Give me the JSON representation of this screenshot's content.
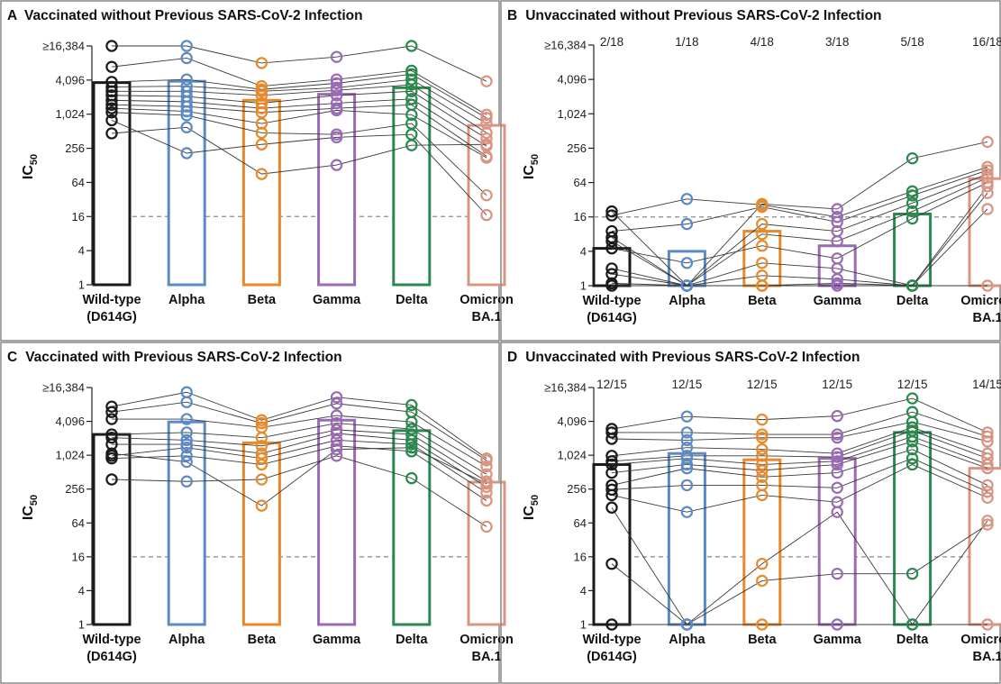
{
  "colors": {
    "Wild-type (D614G)": "#1a1a1a",
    "Alpha": "#5b8ac6",
    "Beta": "#e8892a",
    "Gamma": "#9a6bb4",
    "Delta": "#2a8a4d",
    "Omicron BA.1": "#d99582"
  },
  "chart_data": [
    {
      "panel": "A",
      "title": "Vaccinated without Previous SARS-CoV-2 Infection",
      "type": "bar",
      "ylabel": "IC50",
      "yscale": "log2",
      "ylim": [
        1,
        16384
      ],
      "yticks": [
        {
          "value": 1,
          "label": "1"
        },
        {
          "value": 4,
          "label": "4"
        },
        {
          "value": 16,
          "label": "16"
        },
        {
          "value": 64,
          "label": "64"
        },
        {
          "value": 256,
          "label": "256"
        },
        {
          "value": 1024,
          "label": "1,024"
        },
        {
          "value": 4096,
          "label": "4,096"
        },
        {
          "value": 16384,
          "label": "≥16,384"
        }
      ],
      "threshold": 16,
      "categories": [
        "Wild-type\n(D614G)",
        "Alpha",
        "Beta",
        "Gamma",
        "Delta",
        "Omicron\nBA.1"
      ],
      "ratios": [],
      "bar_values": [
        3700,
        3900,
        1800,
        2300,
        3000,
        650
      ],
      "subjects": [
        [
          16384,
          16384,
          8200,
          10500,
          16384,
          3900
        ],
        [
          7000,
          10000,
          3200,
          4200,
          6000,
          1000
        ],
        [
          3800,
          4200,
          2800,
          3600,
          5200,
          880
        ],
        [
          3100,
          3200,
          2600,
          3000,
          4200,
          700
        ],
        [
          2600,
          2600,
          2200,
          2700,
          3400,
          480
        ],
        [
          2200,
          2100,
          1600,
          2200,
          2600,
          380
        ],
        [
          1800,
          1700,
          1300,
          1600,
          1900,
          280
        ],
        [
          1500,
          1400,
          1100,
          1300,
          1500,
          185
        ],
        [
          1300,
          1150,
          700,
          1200,
          1000,
          175
        ],
        [
          1100,
          980,
          480,
          450,
          700,
          38
        ],
        [
          800,
          210,
          300,
          400,
          450,
          17
        ],
        [
          470,
          600,
          90,
          130,
          290,
          300
        ]
      ]
    },
    {
      "panel": "B",
      "title": "Unvaccinated without Previous SARS-CoV-2 Infection",
      "type": "bar",
      "ylabel": "IC50",
      "yscale": "log2",
      "ylim": [
        1,
        16384
      ],
      "yticks": [
        {
          "value": 1,
          "label": "1"
        },
        {
          "value": 4,
          "label": "4"
        },
        {
          "value": 16,
          "label": "16"
        },
        {
          "value": 64,
          "label": "64"
        },
        {
          "value": 256,
          "label": "256"
        },
        {
          "value": 1024,
          "label": "1,024"
        },
        {
          "value": 4096,
          "label": "4,096"
        },
        {
          "value": 16384,
          "label": "≥16,384"
        }
      ],
      "threshold": 16,
      "categories": [
        "Wild-type\n(D614G)",
        "Alpha",
        "Beta",
        "Gamma",
        "Delta",
        "Omicron\nBA.1"
      ],
      "ratios": [
        "2/18",
        "1/18",
        "4/18",
        "3/18",
        "5/18",
        "16/18"
      ],
      "bar_values": [
        4.5,
        4,
        9,
        5,
        18,
        75
      ],
      "subjects": [
        [
          20,
          1,
          27,
          22,
          170,
          330
        ],
        [
          17,
          33,
          26,
          16,
          45,
          120
        ],
        [
          9,
          12,
          24,
          13,
          38,
          105
        ],
        [
          7,
          1,
          12,
          9,
          28,
          90
        ],
        [
          6,
          1,
          8,
          6,
          20,
          78
        ],
        [
          4.5,
          2.5,
          5,
          3,
          15,
          64
        ],
        [
          2,
          1,
          2.5,
          2,
          1,
          55
        ],
        [
          1.6,
          1,
          1.5,
          1.3,
          1,
          42
        ],
        [
          1.1,
          1,
          1,
          1,
          1,
          22
        ],
        [
          1,
          1,
          1,
          1.1,
          1,
          1
        ]
      ]
    },
    {
      "panel": "C",
      "title": "Vaccinated with Previous SARS-CoV-2 Infection",
      "type": "bar",
      "ylabel": "IC50",
      "yscale": "log2",
      "ylim": [
        1,
        16384
      ],
      "yticks": [
        {
          "value": 1,
          "label": "1"
        },
        {
          "value": 4,
          "label": "4"
        },
        {
          "value": 16,
          "label": "16"
        },
        {
          "value": 64,
          "label": "64"
        },
        {
          "value": 256,
          "label": "256"
        },
        {
          "value": 1024,
          "label": "1,024"
        },
        {
          "value": 4096,
          "label": "4,096"
        },
        {
          "value": 16384,
          "label": "≥16,384"
        }
      ],
      "threshold": 16,
      "categories": [
        "Wild-type\n(D614G)",
        "Alpha",
        "Beta",
        "Gamma",
        "Delta",
        "Omicron\nBA.1"
      ],
      "ratios": [],
      "bar_values": [
        2400,
        4000,
        1700,
        4300,
        2800,
        340
      ],
      "subjects": [
        [
          7500,
          13500,
          4300,
          11000,
          8000,
          900
        ],
        [
          6000,
          9000,
          3800,
          8500,
          6000,
          830
        ],
        [
          4500,
          4500,
          3200,
          5200,
          4000,
          650
        ],
        [
          2400,
          2600,
          2100,
          3800,
          3000,
          470
        ],
        [
          2100,
          1900,
          1500,
          2900,
          2400,
          350
        ],
        [
          1600,
          1600,
          1100,
          2500,
          1900,
          280
        ],
        [
          1000,
          1400,
          900,
          1900,
          1600,
          220
        ],
        [
          900,
          1000,
          700,
          1500,
          1200,
          160
        ],
        [
          380,
          350,
          380,
          1000,
          400,
          55
        ],
        [
          1100,
          780,
          130,
          1300,
          1400,
          320
        ]
      ]
    },
    {
      "panel": "D",
      "title": "Unvaccinated with Previous SARS-CoV-2 Infection",
      "type": "bar",
      "ylabel": "IC50",
      "yscale": "log2",
      "ylim": [
        1,
        16384
      ],
      "yticks": [
        {
          "value": 1,
          "label": "1"
        },
        {
          "value": 4,
          "label": "4"
        },
        {
          "value": 16,
          "label": "16"
        },
        {
          "value": 64,
          "label": "64"
        },
        {
          "value": 256,
          "label": "256"
        },
        {
          "value": 1024,
          "label": "1,024"
        },
        {
          "value": 4096,
          "label": "4,096"
        },
        {
          "value": 16384,
          "label": "≥16,384"
        }
      ],
      "threshold": 16,
      "categories": [
        "Wild-type\n(D614G)",
        "Alpha",
        "Beta",
        "Gamma",
        "Delta",
        "Omicron\nBA.1"
      ],
      "ratios": [
        "12/15",
        "12/15",
        "12/15",
        "12/15",
        "12/15",
        "14/15"
      ],
      "bar_values": [
        700,
        1100,
        850,
        900,
        2600,
        600
      ],
      "subjects": [
        [
          3000,
          5000,
          4400,
          5100,
          10500,
          2600
        ],
        [
          2600,
          2600,
          2400,
          2400,
          6000,
          2200
        ],
        [
          2000,
          1900,
          2100,
          2100,
          4000,
          1800
        ],
        [
          1000,
          1400,
          1300,
          1100,
          3200,
          1100
        ],
        [
          800,
          1000,
          1000,
          950,
          2800,
          900
        ],
        [
          700,
          900,
          700,
          800,
          2200,
          700
        ],
        [
          500,
          700,
          550,
          700,
          1800,
          600
        ],
        [
          300,
          600,
          420,
          500,
          1300,
          300
        ],
        [
          250,
          300,
          300,
          270,
          900,
          230
        ],
        [
          200,
          100,
          200,
          150,
          700,
          180
        ],
        [
          120,
          1,
          12,
          100,
          1,
          70
        ],
        [
          12,
          1,
          6,
          8,
          8,
          60
        ],
        [
          1,
          1,
          1,
          1,
          1,
          1
        ]
      ]
    }
  ]
}
